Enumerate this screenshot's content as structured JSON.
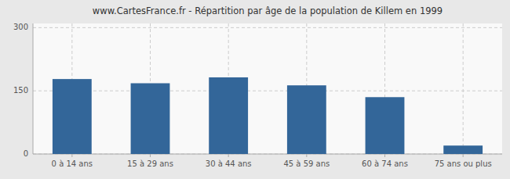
{
  "chart_data": {
    "type": "bar",
    "title": "www.CartesFrance.fr - Répartition par âge de la population de Killem en 1999",
    "categories": [
      "0 à 14 ans",
      "15 à 29 ans",
      "30 à 44 ans",
      "45 à 59 ans",
      "60 à 74 ans",
      "75 ans ou plus"
    ],
    "values": [
      178,
      168,
      182,
      163,
      135,
      20
    ],
    "color": "#336699",
    "ylim": [
      0,
      310
    ],
    "yticks": [
      0,
      150,
      300
    ],
    "grid": true
  }
}
